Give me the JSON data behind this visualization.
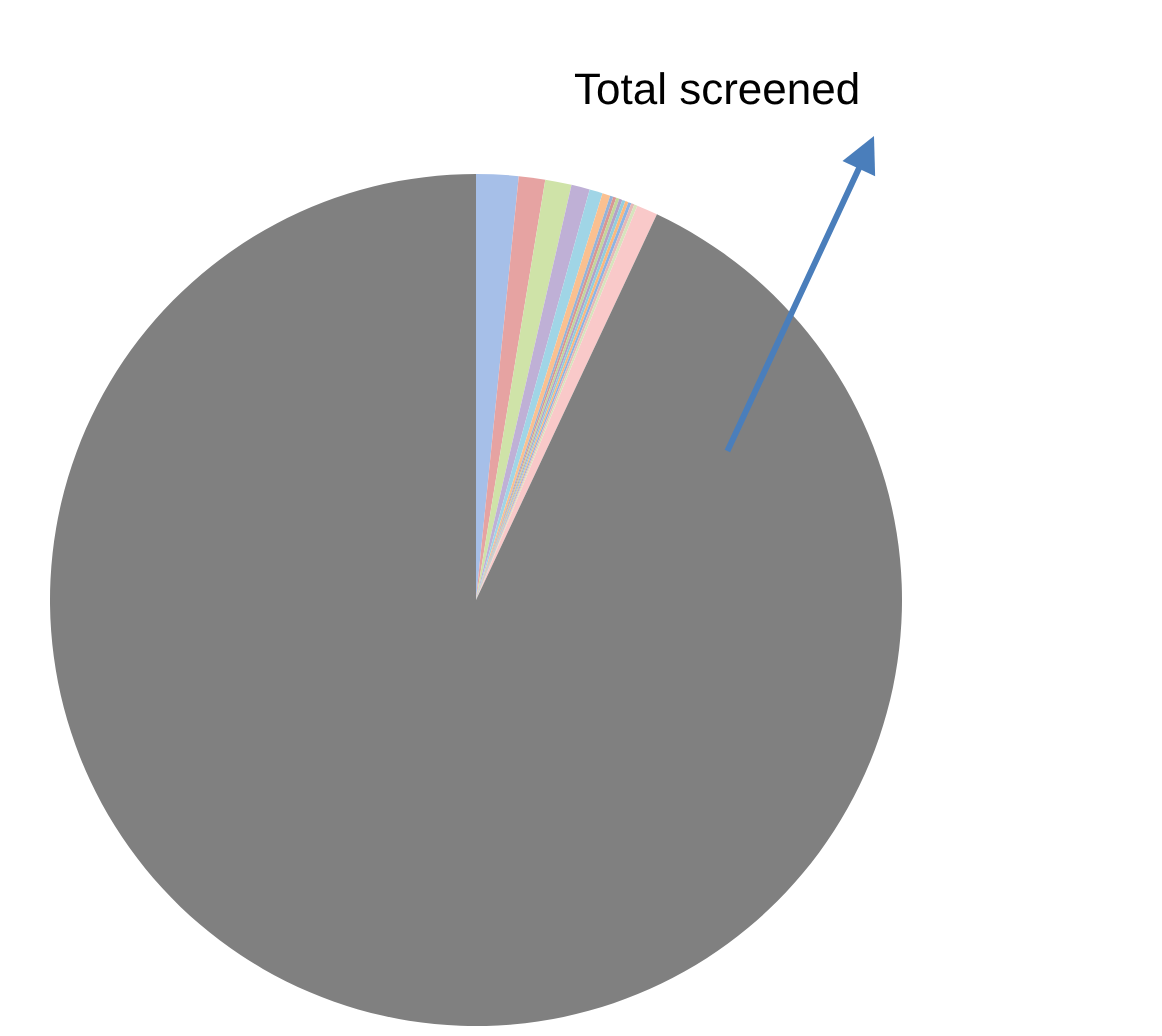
{
  "chart_data": {
    "type": "pie",
    "categories": [
      null,
      null,
      null,
      null,
      null,
      null,
      null,
      null,
      null,
      null,
      null,
      null,
      null,
      null,
      null,
      null,
      null
    ],
    "values": [
      1.6,
      1.0,
      1.0,
      0.7,
      0.5,
      0.3,
      0.12,
      0.12,
      0.12,
      0.12,
      0.12,
      0.12,
      0.12,
      0.12,
      0.12,
      0.8,
      93.0
    ],
    "colors": [
      "#a6bfe8",
      "#e6a3a2",
      "#cfe3a8",
      "#bfb0d6",
      "#a0d5e6",
      "#fac090",
      "#95b3d7",
      "#d99694",
      "#c3d69b",
      "#b3a2c7",
      "#93cddd",
      "#fab97f",
      "#8eb4e3",
      "#e6b9b8",
      "#d7e4bd",
      "#f9c9c9",
      "#808080"
    ],
    "annotations": [
      "Total screened"
    ]
  }
}
